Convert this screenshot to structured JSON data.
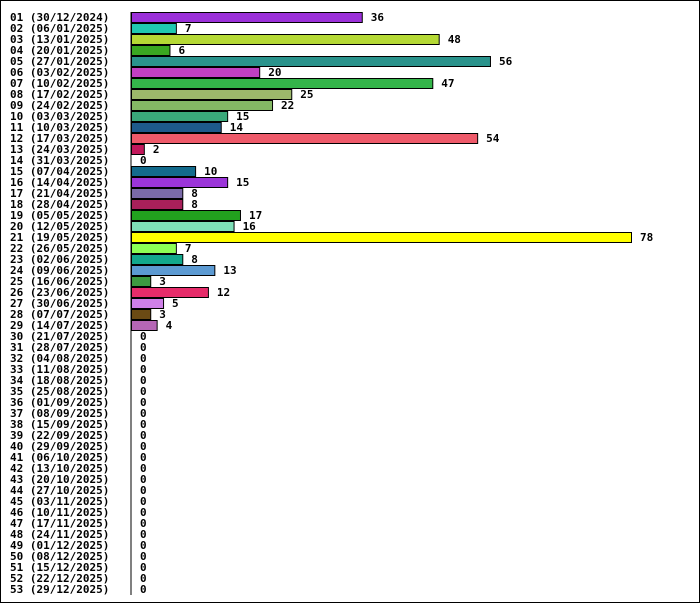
{
  "chart_data": {
    "type": "bar",
    "orientation": "horizontal",
    "title": "",
    "xlabel": "",
    "ylabel": "",
    "grid": false,
    "xlim": [
      0,
      78
    ],
    "categories": [
      "01 (30/12/2024)",
      "02 (06/01/2025)",
      "03 (13/01/2025)",
      "04 (20/01/2025)",
      "05 (27/01/2025)",
      "06 (03/02/2025)",
      "07 (10/02/2025)",
      "08 (17/02/2025)",
      "09 (24/02/2025)",
      "10 (03/03/2025)",
      "11 (10/03/2025)",
      "12 (17/03/2025)",
      "13 (24/03/2025)",
      "14 (31/03/2025)",
      "15 (07/04/2025)",
      "16 (14/04/2025)",
      "17 (21/04/2025)",
      "18 (28/04/2025)",
      "19 (05/05/2025)",
      "20 (12/05/2025)",
      "21 (19/05/2025)",
      "22 (26/05/2025)",
      "23 (02/06/2025)",
      "24 (09/06/2025)",
      "25 (16/06/2025)",
      "26 (23/06/2025)",
      "27 (30/06/2025)",
      "28 (07/07/2025)",
      "29 (14/07/2025)",
      "30 (21/07/2025)",
      "31 (28/07/2025)",
      "32 (04/08/2025)",
      "33 (11/08/2025)",
      "34 (18/08/2025)",
      "35 (25/08/2025)",
      "36 (01/09/2025)",
      "37 (08/09/2025)",
      "38 (15/09/2025)",
      "39 (22/09/2025)",
      "40 (29/09/2025)",
      "41 (06/10/2025)",
      "42 (13/10/2025)",
      "43 (20/10/2025)",
      "44 (27/10/2025)",
      "45 (03/11/2025)",
      "46 (10/11/2025)",
      "47 (17/11/2025)",
      "48 (24/11/2025)",
      "49 (01/12/2025)",
      "50 (08/12/2025)",
      "51 (15/12/2025)",
      "52 (22/12/2025)",
      "53 (29/12/2025)"
    ],
    "values": [
      36,
      7,
      48,
      6,
      56,
      20,
      47,
      25,
      22,
      15,
      14,
      54,
      2,
      0,
      10,
      15,
      8,
      8,
      17,
      16,
      78,
      7,
      8,
      13,
      3,
      12,
      5,
      3,
      4,
      0,
      0,
      0,
      0,
      0,
      0,
      0,
      0,
      0,
      0,
      0,
      0,
      0,
      0,
      0,
      0,
      0,
      0,
      0,
      0,
      0,
      0,
      0,
      0
    ],
    "colors": [
      "#9b30d9",
      "#20c9b0",
      "#b5d935",
      "#3aa821",
      "#2a938c",
      "#c23fc2",
      "#34b54a",
      "#9cb86b",
      "#84b865",
      "#3aa87a",
      "#1e5a8c",
      "#ee5a6a",
      "#c2185b",
      "#ffffff",
      "#136b8c",
      "#9b35d9",
      "#7a6aa8",
      "#a8205a",
      "#22a01e",
      "#7ee0b8",
      "#ffff00",
      "#8cff55",
      "#12a88c",
      "#5c9ad2",
      "#3c9a40",
      "#e62c6a",
      "#cf80e8",
      "#6b4a14",
      "#b566b5",
      "#ffffff",
      "#ffffff",
      "#ffffff",
      "#ffffff",
      "#ffffff",
      "#ffffff",
      "#ffffff",
      "#ffffff",
      "#ffffff",
      "#ffffff",
      "#ffffff",
      "#ffffff",
      "#ffffff",
      "#ffffff",
      "#ffffff",
      "#ffffff",
      "#ffffff",
      "#ffffff",
      "#ffffff",
      "#ffffff",
      "#ffffff",
      "#ffffff",
      "#ffffff",
      "#ffffff"
    ]
  }
}
